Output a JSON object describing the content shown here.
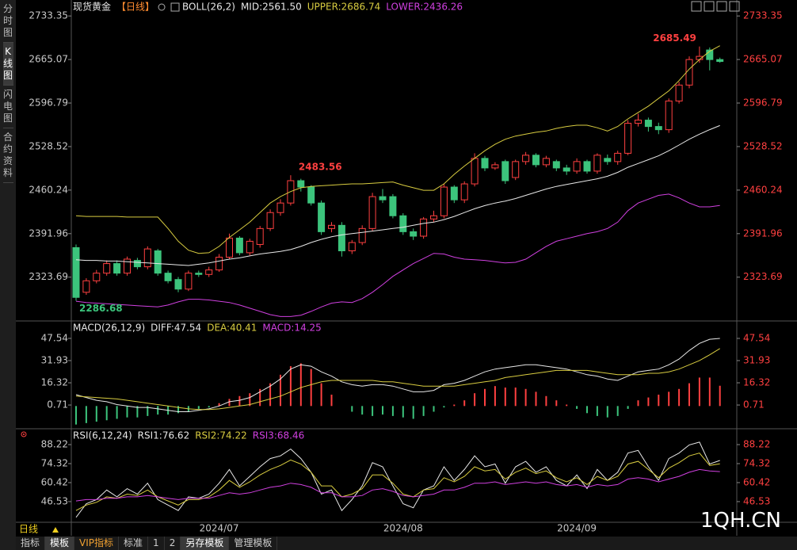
{
  "sidebar": {
    "tabs": [
      "分时图",
      "K线图",
      "闪电图",
      "合约资料"
    ]
  },
  "chart_data": [
    {
      "type": "candlestick",
      "title": "现货黄金",
      "period_label": "【日线】",
      "indicator": "BOLL(26,2)",
      "up_color": "#ff4040",
      "down_color": "#3cc47c",
      "axis_color": "#ff4040",
      "ylim": [
        2255,
        2741
      ],
      "yticks": [
        2323.69,
        2391.96,
        2460.24,
        2528.52,
        2596.79,
        2665.07,
        2733.35
      ],
      "open": [
        2370,
        2300,
        2318,
        2330,
        2345,
        2330,
        2350,
        2340,
        2365,
        2330,
        2320,
        2305,
        2330,
        2328,
        2335,
        2355,
        2385,
        2362,
        2375,
        2400,
        2425,
        2440,
        2475,
        2465,
        2440,
        2400,
        2405,
        2365,
        2378,
        2400,
        2450,
        2450,
        2420,
        2395,
        2388,
        2415,
        2420,
        2465,
        2445,
        2470,
        2510,
        2495,
        2505,
        2480,
        2505,
        2515,
        2500,
        2505,
        2495,
        2490,
        2505,
        2490,
        2510,
        2505,
        2518,
        2565,
        2570,
        2560,
        2555,
        2600,
        2625,
        2665,
        2680,
        2665
      ],
      "high": [
        2375,
        2322,
        2335,
        2350,
        2350,
        2356,
        2354,
        2372,
        2368,
        2334,
        2324,
        2334,
        2334,
        2340,
        2360,
        2392,
        2388,
        2384,
        2404,
        2430,
        2446,
        2483.56,
        2478,
        2468,
        2444,
        2410,
        2410,
        2382,
        2405,
        2456,
        2462,
        2454,
        2424,
        2400,
        2418,
        2428,
        2470,
        2468,
        2474,
        2518,
        2514,
        2504,
        2508,
        2508,
        2520,
        2518,
        2514,
        2508,
        2500,
        2510,
        2508,
        2518,
        2516,
        2522,
        2570,
        2580,
        2574,
        2566,
        2604,
        2630,
        2670,
        2685.49,
        2684,
        2668
      ],
      "low": [
        2286.68,
        2296,
        2314,
        2326,
        2326,
        2326,
        2336,
        2336,
        2326,
        2314,
        2300,
        2302,
        2324,
        2324,
        2332,
        2352,
        2358,
        2358,
        2370,
        2396,
        2420,
        2436,
        2458,
        2436,
        2390,
        2394,
        2356,
        2360,
        2374,
        2396,
        2440,
        2416,
        2390,
        2382,
        2384,
        2410,
        2416,
        2440,
        2440,
        2466,
        2490,
        2492,
        2470,
        2476,
        2500,
        2496,
        2496,
        2490,
        2484,
        2486,
        2486,
        2486,
        2500,
        2500,
        2515,
        2560,
        2552,
        2548,
        2550,
        2596,
        2620,
        2660,
        2648,
        2660
      ],
      "close": [
        2292,
        2318,
        2330,
        2345,
        2330,
        2352,
        2340,
        2368,
        2330,
        2318,
        2305,
        2330,
        2328,
        2335,
        2355,
        2385,
        2362,
        2380,
        2400,
        2425,
        2440,
        2475,
        2465,
        2440,
        2395,
        2405,
        2365,
        2378,
        2400,
        2450,
        2445,
        2420,
        2395,
        2388,
        2415,
        2420,
        2465,
        2445,
        2470,
        2510,
        2495,
        2500,
        2475,
        2505,
        2515,
        2500,
        2510,
        2495,
        2490,
        2505,
        2490,
        2515,
        2505,
        2518,
        2565,
        2570,
        2560,
        2555,
        2600,
        2625,
        2665,
        2670,
        2665,
        2662
      ],
      "series": [
        {
          "name": "MID:2561.50",
          "color": "#e8e8e8",
          "values": [
            2351,
            2350,
            2350,
            2349,
            2349,
            2348,
            2347,
            2346,
            2345,
            2344,
            2343,
            2342,
            2344,
            2346,
            2349,
            2352,
            2354,
            2357,
            2360,
            2362,
            2364,
            2367,
            2372,
            2378,
            2383,
            2387,
            2390,
            2392,
            2394,
            2396,
            2398,
            2400,
            2402,
            2405,
            2408,
            2410,
            2414,
            2419,
            2425,
            2431,
            2436,
            2440,
            2443,
            2447,
            2452,
            2457,
            2462,
            2466,
            2469,
            2472,
            2475,
            2478,
            2482,
            2488,
            2496,
            2502,
            2508,
            2514,
            2522,
            2531,
            2540,
            2548,
            2555,
            2561.5
          ]
        },
        {
          "name": "UPPER:2686.74",
          "color": "#d8cc40",
          "values": [
            2420,
            2419,
            2419,
            2419,
            2419,
            2418,
            2418,
            2418,
            2418,
            2400,
            2380,
            2366,
            2361,
            2362,
            2372,
            2386,
            2398,
            2410,
            2425,
            2440,
            2450,
            2458,
            2464,
            2466,
            2467,
            2468,
            2469,
            2470,
            2470,
            2471,
            2472,
            2473,
            2468,
            2464,
            2460,
            2460,
            2470,
            2485,
            2498,
            2510,
            2522,
            2532,
            2540,
            2545,
            2548,
            2551,
            2553,
            2557,
            2560,
            2562,
            2562,
            2558,
            2553,
            2560,
            2572,
            2582,
            2592,
            2604,
            2616,
            2632,
            2650,
            2665,
            2678,
            2686.74
          ]
        },
        {
          "name": "LOWER:2436.26",
          "color": "#d040e0",
          "values": [
            2286,
            2284,
            2283,
            2282,
            2281,
            2280,
            2279,
            2278,
            2277,
            2280,
            2285,
            2289,
            2289,
            2288,
            2286,
            2284,
            2280,
            2275,
            2270,
            2265,
            2262,
            2262,
            2264,
            2270,
            2277,
            2283,
            2285,
            2284,
            2290,
            2300,
            2312,
            2325,
            2335,
            2345,
            2353,
            2361,
            2360,
            2355,
            2352,
            2351,
            2350,
            2348,
            2346,
            2347,
            2352,
            2362,
            2372,
            2380,
            2384,
            2388,
            2392,
            2395,
            2400,
            2410,
            2428,
            2440,
            2446,
            2452,
            2454,
            2448,
            2440,
            2434,
            2434,
            2436.26
          ]
        }
      ]
    },
    {
      "type": "macd",
      "title": "MACD(26,12,9)",
      "axis_color": "#ff4040",
      "ylim": [
        -14.3,
        57
      ],
      "yticks": [
        0.71,
        16.32,
        31.93,
        47.54
      ],
      "series": [
        {
          "name": "DIFF:47.54",
          "color": "#e8e8e8",
          "values": [
            8,
            6,
            4,
            3,
            1,
            0,
            -1,
            -1,
            -2,
            -3,
            -4,
            -4,
            -3,
            -2,
            0,
            3,
            4,
            6,
            10,
            14,
            19,
            26,
            29,
            28,
            24,
            21,
            17,
            15,
            14,
            15,
            15,
            14,
            12,
            10,
            10,
            11,
            15,
            16,
            18,
            21,
            24,
            26,
            27,
            28,
            29,
            29,
            28,
            27,
            26,
            24,
            22,
            21,
            19,
            18,
            21,
            24,
            25,
            26,
            29,
            33,
            39,
            44,
            46.9,
            47.54
          ]
        },
        {
          "name": "DEA:40.41",
          "color": "#d8cc40",
          "values": [
            7,
            6.5,
            6,
            5.5,
            5,
            4,
            3,
            2,
            1,
            0,
            -1,
            -2,
            -2.5,
            -2.5,
            -2,
            -1,
            0,
            1,
            3,
            5,
            7,
            10,
            13,
            15,
            17,
            18,
            18,
            18,
            18,
            18,
            17,
            17,
            16,
            15,
            14,
            14,
            14,
            14,
            15,
            16,
            17,
            18,
            20,
            21,
            22,
            23,
            24,
            25,
            25,
            25,
            25,
            24,
            23,
            22,
            22,
            22,
            23,
            23,
            24,
            26,
            29,
            32,
            36,
            40.41
          ]
        }
      ],
      "histogram": {
        "name": "MACD:14.25",
        "color": "#d040e0",
        "up_color": "#ff4040",
        "down_color": "#3cc47c",
        "values": [
          -13,
          -12,
          -11,
          -10,
          -9,
          -8,
          -8,
          -7,
          -6,
          -6,
          -5,
          -4,
          -2,
          -1,
          2,
          5,
          7,
          9,
          12,
          16,
          22,
          28,
          30,
          26,
          16,
          8,
          0,
          -4,
          -6,
          -7,
          -6,
          -7,
          -8,
          -9,
          -7,
          -4,
          -1,
          1,
          4,
          9,
          12,
          14,
          13,
          13,
          12,
          10,
          7,
          4,
          1,
          -2,
          -5,
          -7,
          -8,
          -7,
          -2,
          4,
          6,
          8,
          10,
          12,
          16,
          20,
          20,
          14.25
        ]
      }
    },
    {
      "type": "line",
      "title": "RSI(6,12,24)",
      "axis_color": "#ff4040",
      "ylim": [
        32,
        97.5
      ],
      "yticks": [
        46.53,
        60.42,
        74.32,
        88.22
      ],
      "categories": [
        null,
        null,
        null,
        null,
        null,
        null,
        null,
        null,
        null,
        null,
        null,
        null,
        null,
        null,
        "2024/07",
        null,
        null,
        null,
        null,
        null,
        null,
        null,
        null,
        null,
        null,
        null,
        null,
        null,
        null,
        null,
        null,
        null,
        "2024/08",
        null,
        null,
        null,
        null,
        null,
        null,
        null,
        null,
        null,
        null,
        null,
        null,
        null,
        null,
        null,
        null,
        "2024/09",
        null,
        null,
        null,
        null,
        null,
        null,
        null,
        null,
        null,
        null,
        null,
        null,
        null,
        null
      ],
      "series": [
        {
          "name": "RSI1:76.62",
          "color": "#e8e8e8",
          "values": [
            35,
            45,
            48,
            55,
            50,
            56,
            52,
            60,
            48,
            44,
            40,
            50,
            49,
            52,
            60,
            70,
            58,
            65,
            72,
            78,
            80,
            85,
            78,
            68,
            52,
            55,
            40,
            48,
            58,
            75,
            72,
            58,
            45,
            42,
            55,
            58,
            72,
            62,
            70,
            80,
            72,
            74,
            60,
            72,
            76,
            68,
            72,
            62,
            58,
            66,
            56,
            70,
            62,
            68,
            82,
            84,
            72,
            62,
            78,
            82,
            88,
            90,
            74,
            76.62
          ]
        },
        {
          "name": "RSI2:74.22",
          "color": "#d8cc40",
          "values": [
            40,
            44,
            46,
            50,
            49,
            52,
            51,
            55,
            50,
            47,
            44,
            48,
            48,
            50,
            55,
            62,
            57,
            61,
            66,
            70,
            73,
            77,
            74,
            68,
            58,
            58,
            50,
            52,
            56,
            66,
            66,
            60,
            52,
            50,
            55,
            56,
            64,
            61,
            65,
            72,
            69,
            70,
            63,
            68,
            71,
            67,
            69,
            64,
            61,
            64,
            59,
            65,
            62,
            65,
            74,
            76,
            70,
            64,
            71,
            75,
            80,
            82,
            73,
            74.22
          ]
        },
        {
          "name": "RSI3:68.46",
          "color": "#d040e0",
          "values": [
            47,
            48,
            48,
            49,
            49,
            50,
            50,
            51,
            50,
            49,
            48,
            49,
            49,
            49,
            51,
            53,
            52,
            53,
            55,
            57,
            58,
            60,
            59,
            57,
            53,
            53,
            50,
            50,
            51,
            55,
            56,
            54,
            51,
            50,
            51,
            52,
            55,
            55,
            57,
            60,
            60,
            61,
            59,
            60,
            61,
            60,
            61,
            59,
            58,
            59,
            57,
            59,
            58,
            59,
            63,
            64,
            63,
            61,
            63,
            65,
            68,
            70,
            69,
            68.46
          ]
        }
      ]
    }
  ],
  "status": {
    "period": "日线"
  },
  "toolbar": {
    "tabs": [
      "指标",
      "模板",
      "VIP指标",
      "标准",
      "1",
      "2",
      "另存模板",
      "管理模板"
    ]
  },
  "watermark": "1QH.CN"
}
